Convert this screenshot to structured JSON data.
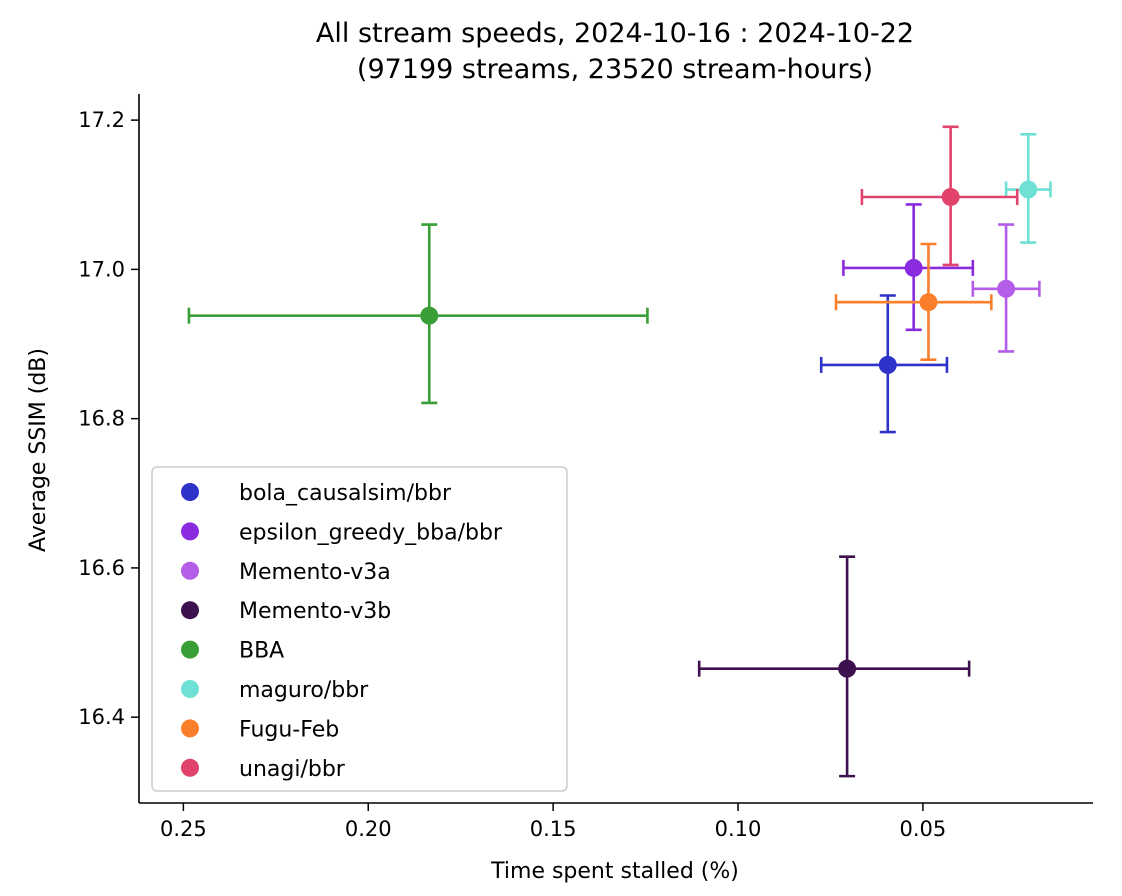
{
  "chart_data": {
    "type": "scatter",
    "title": "All stream speeds, 2024-10-16 : 2024-10-22",
    "subtitle": "(97199 streams, 23520 stream-hours)",
    "xlabel": "Time spent stalled (%)",
    "ylabel": "Average SSIM (dB)",
    "x_inverted": true,
    "xlim": [
      0.262,
      0.004
    ],
    "ylim": [
      16.285,
      17.235
    ],
    "xticks": [
      0.25,
      0.2,
      0.15,
      0.1,
      0.05
    ],
    "xtick_labels": [
      "0.25",
      "0.20",
      "0.15",
      "0.10",
      "0.05"
    ],
    "yticks": [
      16.4,
      16.6,
      16.8,
      17.0,
      17.2
    ],
    "ytick_labels": [
      "16.4",
      "16.6",
      "16.8",
      "17.0",
      "17.2"
    ],
    "grid": false,
    "legend_position": "lower-left",
    "series": [
      {
        "name": "bola_causalsim/bbr",
        "color": "#2e32c8",
        "x": 0.0595,
        "y": 16.872,
        "xerr": [
          0.0775,
          0.0435
        ],
        "yerr": [
          16.782,
          16.965
        ]
      },
      {
        "name": "epsilon_greedy_bba/bbr",
        "color": "#8b2be0",
        "x": 0.0525,
        "y": 17.002,
        "xerr": [
          0.0715,
          0.0365
        ],
        "yerr": [
          16.919,
          17.087
        ]
      },
      {
        "name": "Memento-v3a",
        "color": "#b35de8",
        "x": 0.0275,
        "y": 16.974,
        "xerr": [
          0.0365,
          0.0185
        ],
        "yerr": [
          16.89,
          17.06
        ]
      },
      {
        "name": "Memento-v3b",
        "color": "#3d1150",
        "x": 0.0705,
        "y": 16.465,
        "xerr": [
          0.1105,
          0.0375
        ],
        "yerr": [
          16.321,
          16.615
        ]
      },
      {
        "name": "BBA",
        "color": "#3a9e37",
        "x": 0.1835,
        "y": 16.938,
        "xerr": [
          0.2485,
          0.1245
        ],
        "yerr": [
          16.821,
          17.06
        ]
      },
      {
        "name": "maguro/bbr",
        "color": "#6fe0d4",
        "x": 0.0215,
        "y": 17.107,
        "xerr": [
          0.0275,
          0.0155
        ],
        "yerr": [
          17.036,
          17.181
        ]
      },
      {
        "name": "Fugu-Feb",
        "color": "#fb7f2b",
        "x": 0.0485,
        "y": 16.956,
        "xerr": [
          0.0735,
          0.0315
        ],
        "yerr": [
          16.879,
          17.034
        ]
      },
      {
        "name": "unagi/bbr",
        "color": "#e1436c",
        "x": 0.0425,
        "y": 17.097,
        "xerr": [
          0.0665,
          0.0245
        ],
        "yerr": [
          17.006,
          17.191
        ]
      }
    ]
  }
}
